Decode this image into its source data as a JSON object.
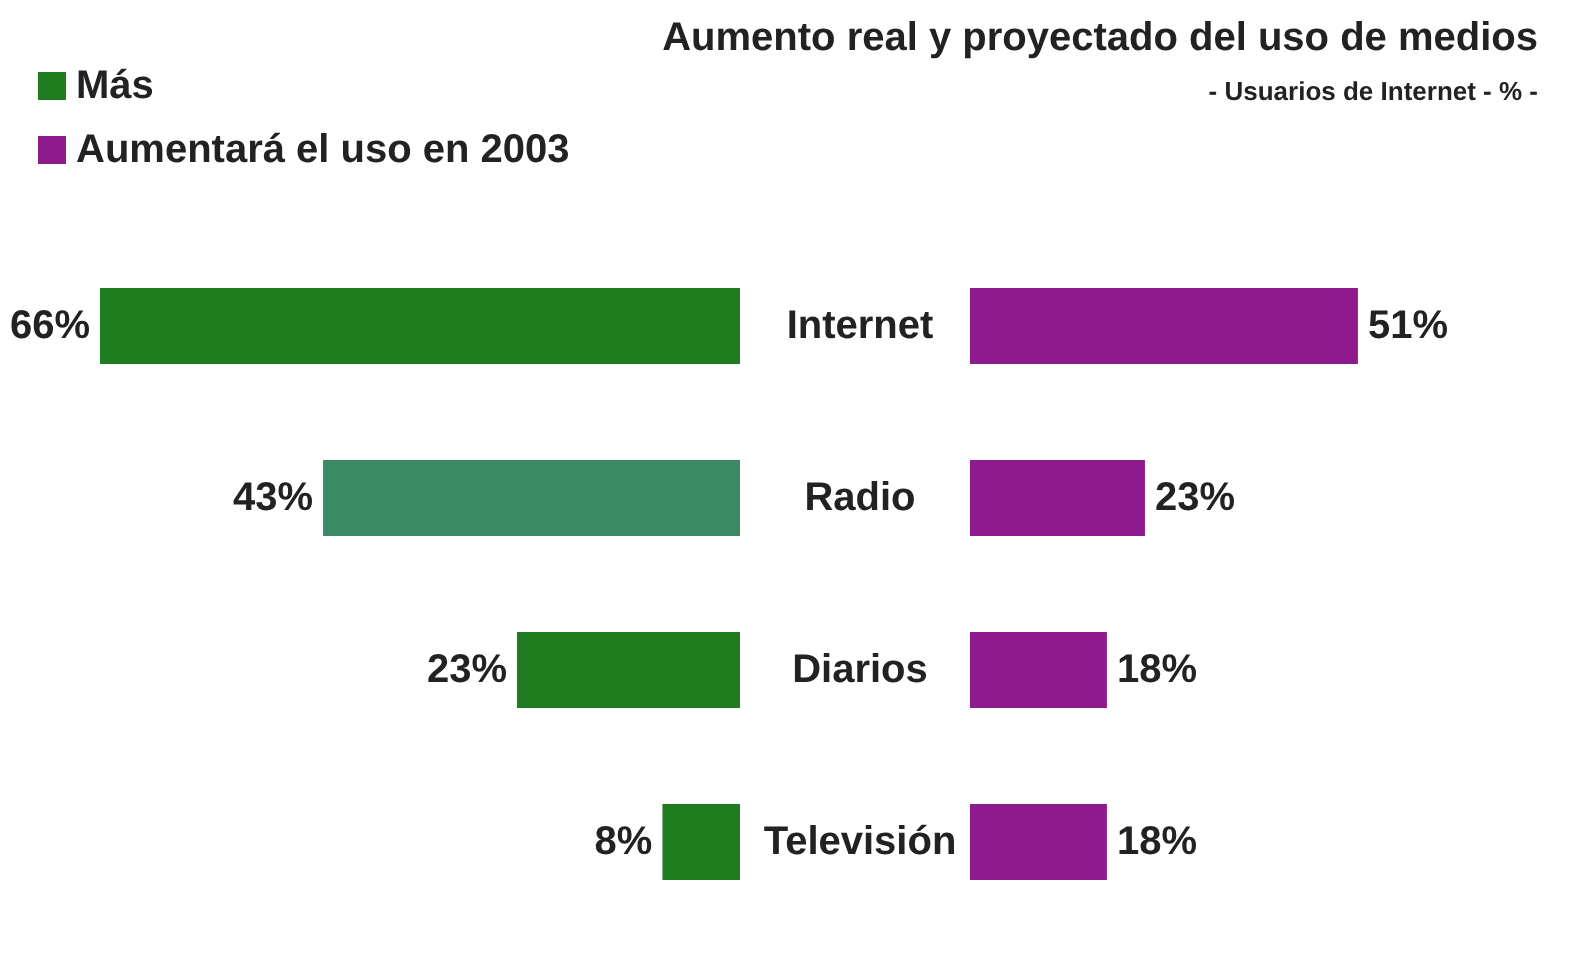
{
  "chart_data": [
    {
      "type": "bar",
      "orientation": "horizontal",
      "categories": [
        "Internet",
        "Radio",
        "Diarios",
        "Televisión"
      ],
      "legend": "top left",
      "series": [
        {
          "name": "Más",
          "color": "#1e7d1e",
          "colors": [
            "#1e7d1e",
            "#3a8a66",
            "#1e7d1e",
            "#1e7d1e"
          ],
          "values": [
            66,
            43,
            23,
            8
          ],
          "value_labels": [
            "66%",
            "43%",
            "23%",
            "8%"
          ]
        }
      ]
    },
    {
      "type": "bar",
      "orientation": "horizontal",
      "title": "Aumento real y proyectado del uso de medios",
      "subtitle": "- Usuarios de Internet - % -",
      "categories": [
        null,
        null,
        null,
        null
      ],
      "legend": "top left",
      "series": [
        {
          "name": "Aumentará el uso en 2003",
          "color": "#8e1a8e",
          "values": [
            51,
            23,
            18,
            18
          ],
          "value_labels": [
            "51%",
            "23%",
            "18%",
            "18%"
          ]
        }
      ]
    }
  ]
}
